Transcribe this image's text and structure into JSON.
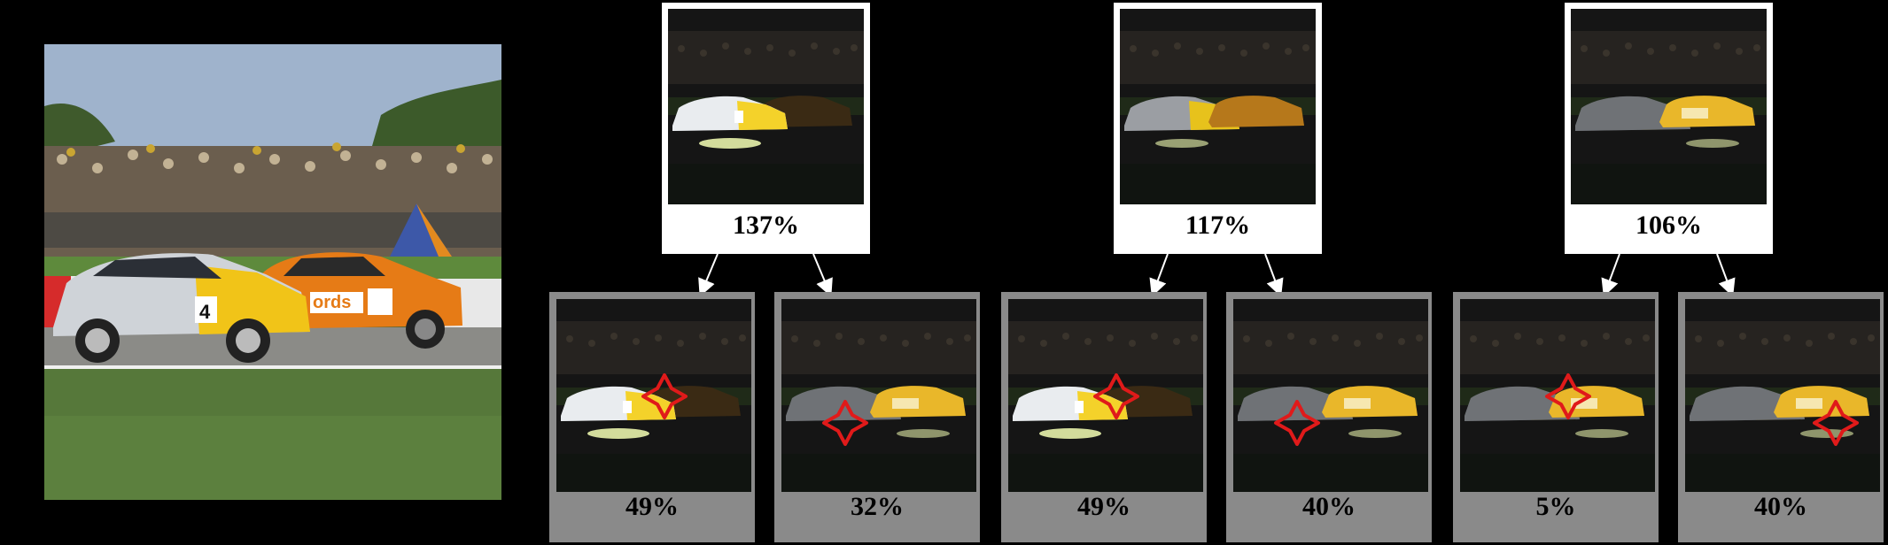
{
  "diagram": {
    "top_nodes": [
      {
        "label": "137%",
        "highlight": "front"
      },
      {
        "label": "117%",
        "highlight": "mid"
      },
      {
        "label": "106%",
        "highlight": "back"
      }
    ],
    "bottom_nodes": [
      {
        "label": "49%",
        "highlight": "front",
        "marker": "upper"
      },
      {
        "label": "32%",
        "highlight": "back",
        "marker": "lower"
      },
      {
        "label": "49%",
        "highlight": "front",
        "marker": "upper"
      },
      {
        "label": "40%",
        "highlight": "back",
        "marker": "lower"
      },
      {
        "label": "5%",
        "highlight": "back",
        "marker": "upper"
      },
      {
        "label": "40%",
        "highlight": "back",
        "marker": "right"
      }
    ],
    "colors": {
      "background": "#000000",
      "top_frame": "#ffffff",
      "bottom_frame": "#8a8a8a",
      "marker": "#e01a1a",
      "arrow": "#ffffff",
      "glow": "#f4ffb4"
    },
    "icons": [
      "occlusion-marker-icon",
      "race-car-icon"
    ]
  }
}
